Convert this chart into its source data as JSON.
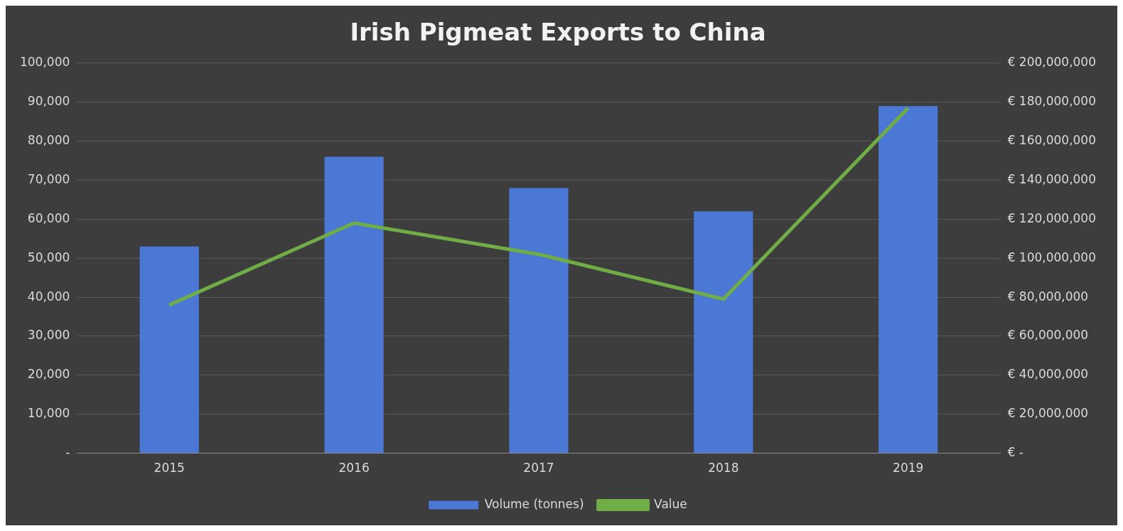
{
  "chart_data": {
    "type": "bar",
    "title": "Irish Pigmeat Exports to China",
    "categories": [
      "2015",
      "2016",
      "2017",
      "2018",
      "2019"
    ],
    "series": [
      {
        "name": "Volume (tonnes)",
        "color": "#4a78d4",
        "values": [
          53000,
          76000,
          68000,
          62000,
          89000
        ]
      },
      {
        "name": "Value",
        "type": "line",
        "axis": "y2",
        "color": "#70ad47",
        "values": [
          76000000,
          118000000,
          102000000,
          79000000,
          177000000
        ]
      }
    ],
    "ylim": [
      0,
      100000
    ],
    "yticks": [
      {
        "value": 0,
        "label": "-"
      },
      {
        "value": 10000,
        "label": "10,000"
      },
      {
        "value": 20000,
        "label": "20,000"
      },
      {
        "value": 30000,
        "label": "30,000"
      },
      {
        "value": 40000,
        "label": "40,000"
      },
      {
        "value": 50000,
        "label": "50,000"
      },
      {
        "value": 60000,
        "label": "60,000"
      },
      {
        "value": 70000,
        "label": "70,000"
      },
      {
        "value": 80000,
        "label": "80,000"
      },
      {
        "value": 90000,
        "label": "90,000"
      },
      {
        "value": 100000,
        "label": "100,000"
      }
    ],
    "y2lim": [
      0,
      200000000
    ],
    "y2ticks": [
      {
        "value": 0,
        "label": "€ -"
      },
      {
        "value": 20000000,
        "label": "€ 20,000,000"
      },
      {
        "value": 40000000,
        "label": "€ 40,000,000"
      },
      {
        "value": 60000000,
        "label": "€ 60,000,000"
      },
      {
        "value": 80000000,
        "label": "€ 80,000,000"
      },
      {
        "value": 100000000,
        "label": "€ 100,000,000"
      },
      {
        "value": 120000000,
        "label": "€ 120,000,000"
      },
      {
        "value": 140000000,
        "label": "€ 140,000,000"
      },
      {
        "value": 160000000,
        "label": "€ 160,000,000"
      },
      {
        "value": 180000000,
        "label": "€ 180,000,000"
      },
      {
        "value": 200000000,
        "label": "€ 200,000,000"
      }
    ],
    "grid": "y",
    "legend": "bottom",
    "marker": "none",
    "line_style": "solid"
  }
}
